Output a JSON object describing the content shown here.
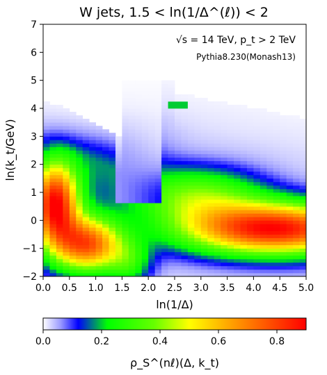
{
  "chart_data": {
    "type": "heatmap",
    "title": "W jets, 1.5 < ln(1/Δ^(ℓ)) < 2",
    "xlabel": "ln(1/Δ)",
    "ylabel": "ln(k_t/GeV)",
    "xlim": [
      0.0,
      5.0
    ],
    "ylim": [
      -2,
      7
    ],
    "x_ticks": [
      "0.0",
      "0.5",
      "1.0",
      "1.5",
      "2.0",
      "2.5",
      "3.0",
      "3.5",
      "4.0",
      "4.5",
      "5.0"
    ],
    "y_ticks": [
      "−2",
      "−1",
      "0",
      "1",
      "2",
      "3",
      "4",
      "5",
      "6",
      "7"
    ],
    "annotations": {
      "energy": "√s = 14 TeV, p_t > 2 TeV",
      "generator": "Pythia8.230(Monash13)"
    },
    "colorbar": {
      "label": "ρ_S^(nℓ)(Δ, k_t)",
      "range": [
        0.0,
        0.9
      ],
      "ticks": [
        "0.0",
        "0.2",
        "0.4",
        "0.6",
        "0.8"
      ],
      "colormap_stops": [
        {
          "v": 0.0,
          "color": "#ffffff"
        },
        {
          "v": 0.06,
          "color": "#9a9aff"
        },
        {
          "v": 0.12,
          "color": "#0000ff"
        },
        {
          "v": 0.22,
          "color": "#00ff00"
        },
        {
          "v": 0.38,
          "color": "#66ff00"
        },
        {
          "v": 0.5,
          "color": "#ffff00"
        },
        {
          "v": 0.62,
          "color": "#ffb000"
        },
        {
          "v": 0.9,
          "color": "#ff0000"
        }
      ]
    },
    "grid": false,
    "cell_size": {
      "dx": 0.125,
      "dy": 0.125
    },
    "density_model": "approximate field reconstructed from the image; values in colorbar units"
  }
}
